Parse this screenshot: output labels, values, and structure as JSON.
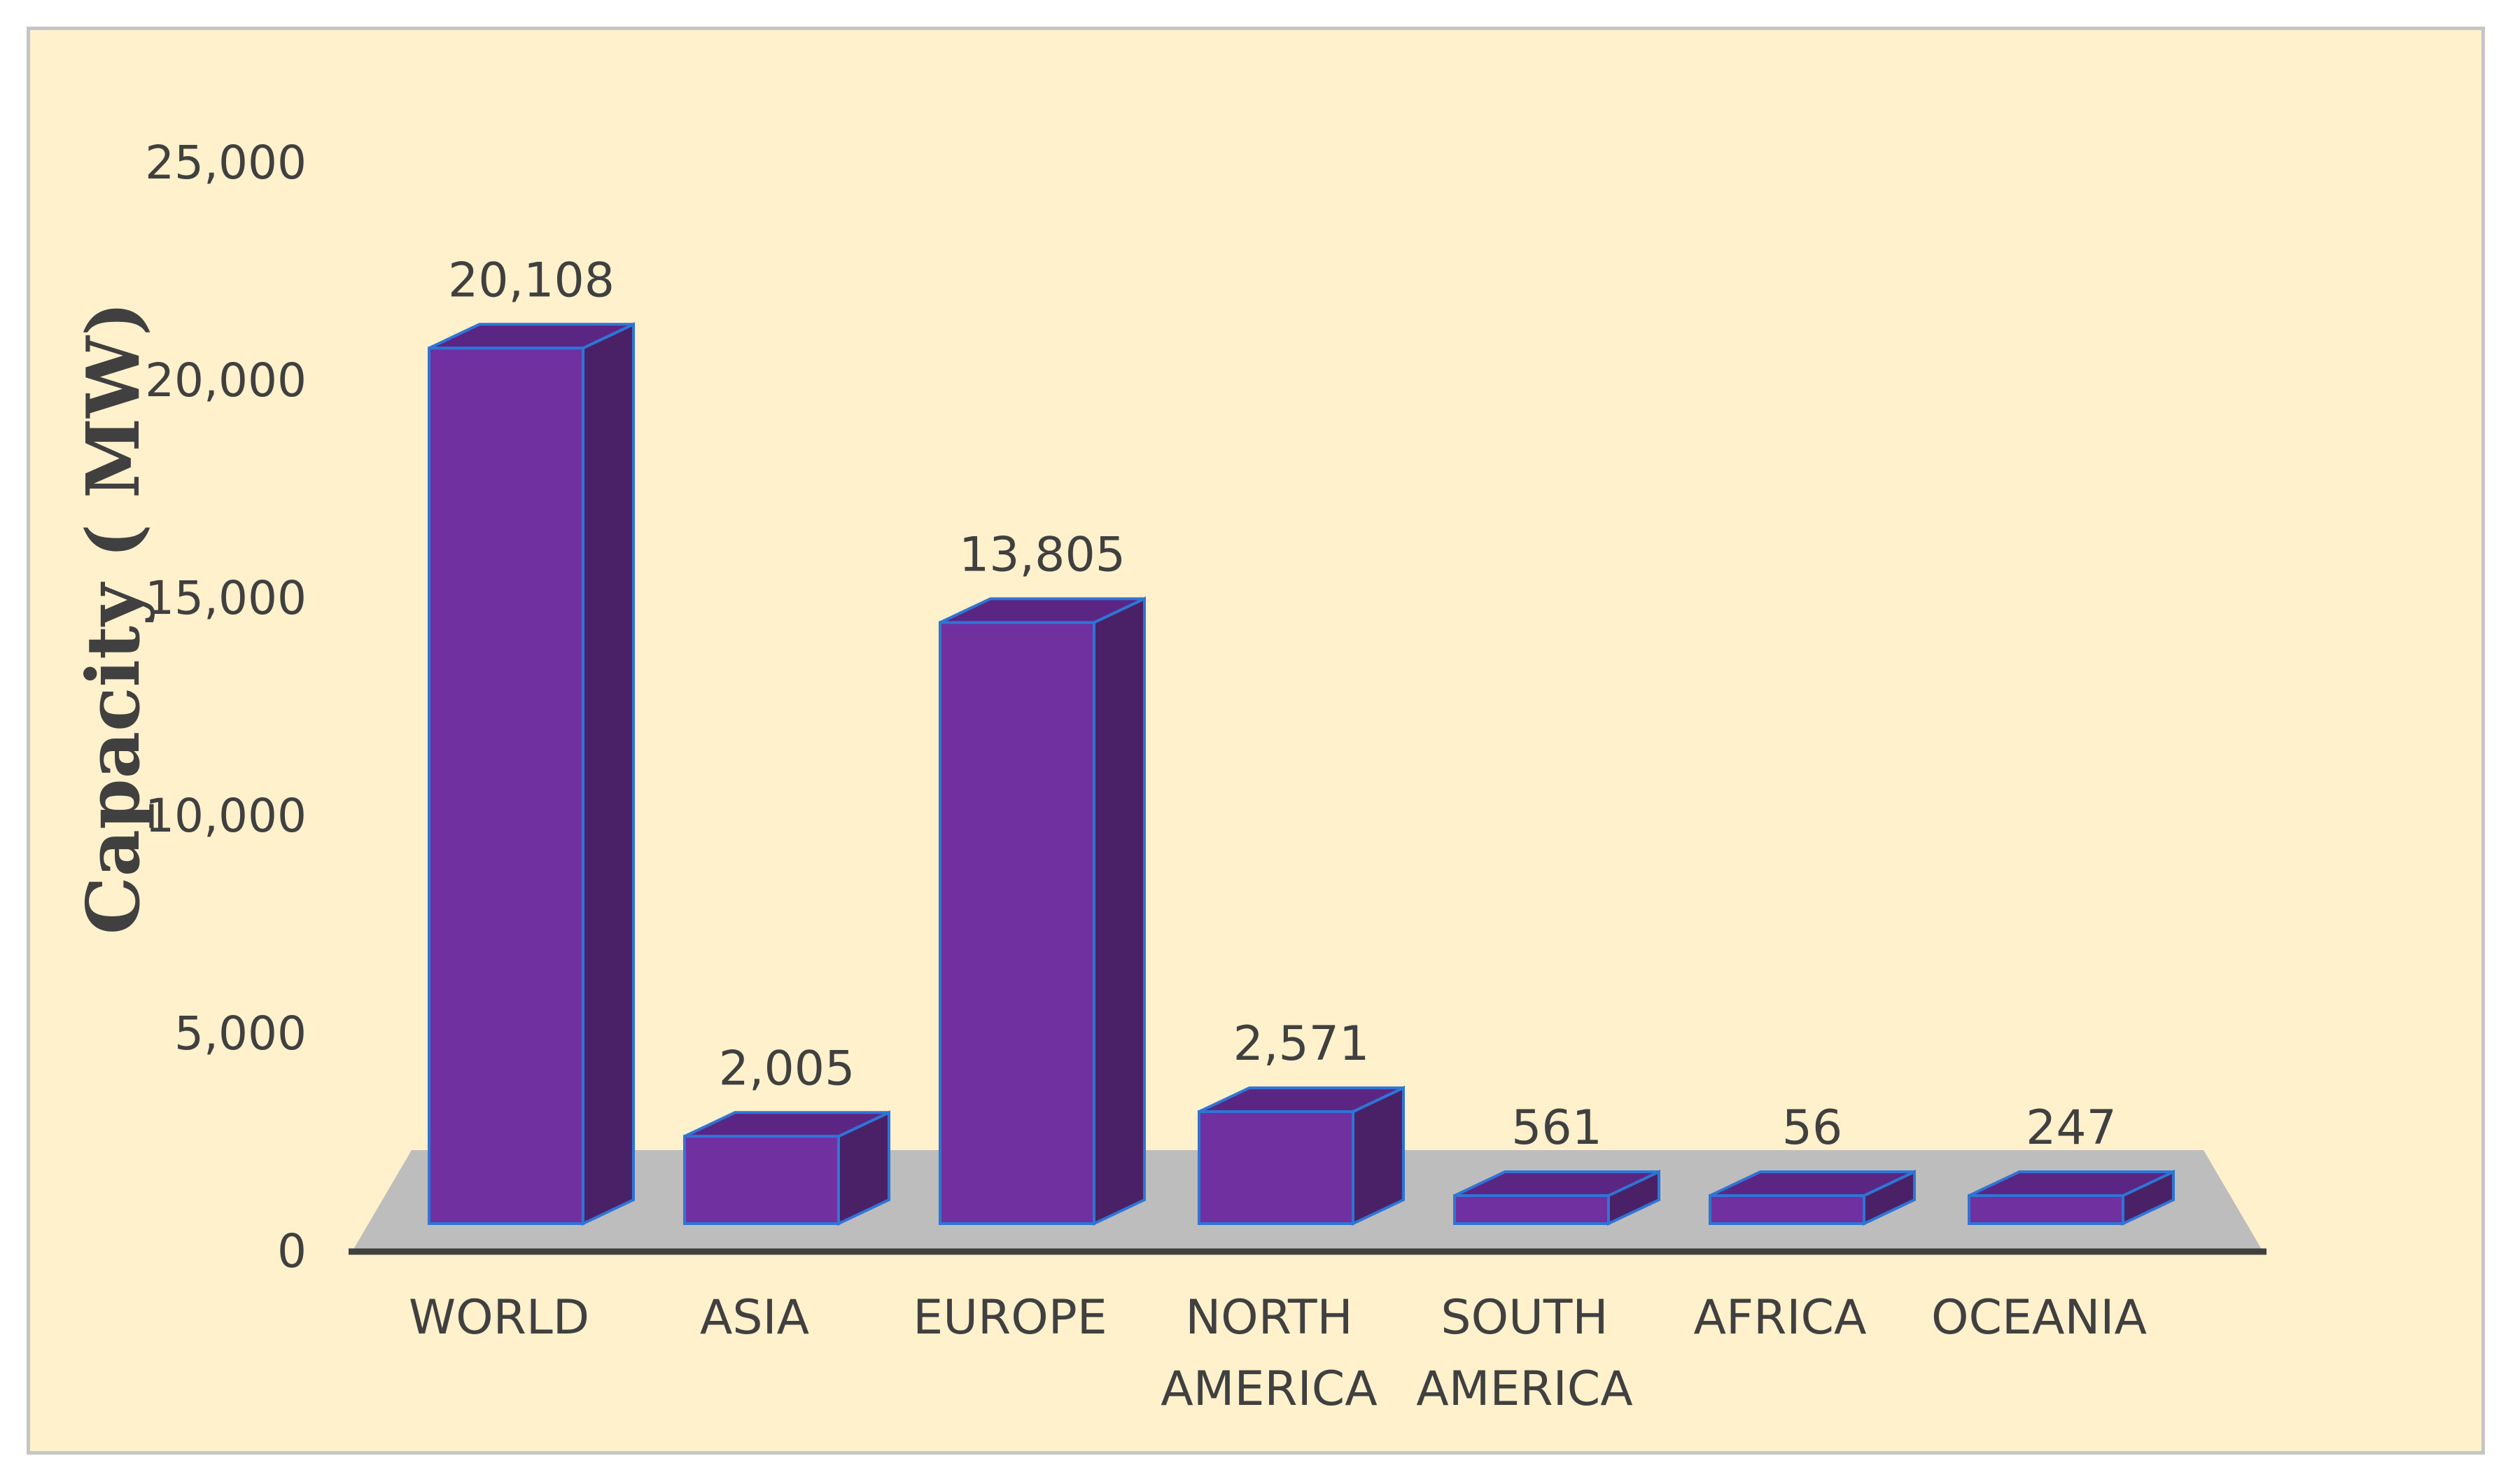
{
  "colors": {
    "background": "#fff1cc",
    "bar_front": "#7030a0",
    "bar_side": "#4a2066",
    "bar_top": "#5b2584",
    "bar_edge": "#2e75d6",
    "floor": "#bdbdbd",
    "axis": "#404040",
    "text": "#404040"
  },
  "chart_data": {
    "type": "bar",
    "style": "3d-column",
    "categories": [
      "WORLD",
      "ASIA",
      "EUROPE",
      "NORTH AMERICA",
      "SOUTH AMERICA",
      "AFRICA",
      "OCEANIA"
    ],
    "category_lines": [
      [
        "WORLD"
      ],
      [
        "ASIA"
      ],
      [
        "EUROPE"
      ],
      [
        "NORTH",
        "AMERICA"
      ],
      [
        "SOUTH",
        "AMERICA"
      ],
      [
        "AFRICA"
      ],
      [
        "OCEANIA"
      ]
    ],
    "values": [
      20108,
      2005,
      13805,
      2571,
      561,
      56,
      247
    ],
    "data_labels": [
      "20,108",
      "2,005",
      "13,805",
      "2,571",
      "561",
      "56",
      "247"
    ],
    "ylabel": "Capacity ( MW)",
    "xlabel": "",
    "ylim": [
      0,
      25000
    ],
    "yticks": [
      0,
      5000,
      10000,
      15000,
      20000,
      25000
    ],
    "ytick_labels": [
      "0",
      "5,000",
      "10,000",
      "15,000",
      "20,000",
      "25,000"
    ],
    "grid": false,
    "legend": "none"
  }
}
